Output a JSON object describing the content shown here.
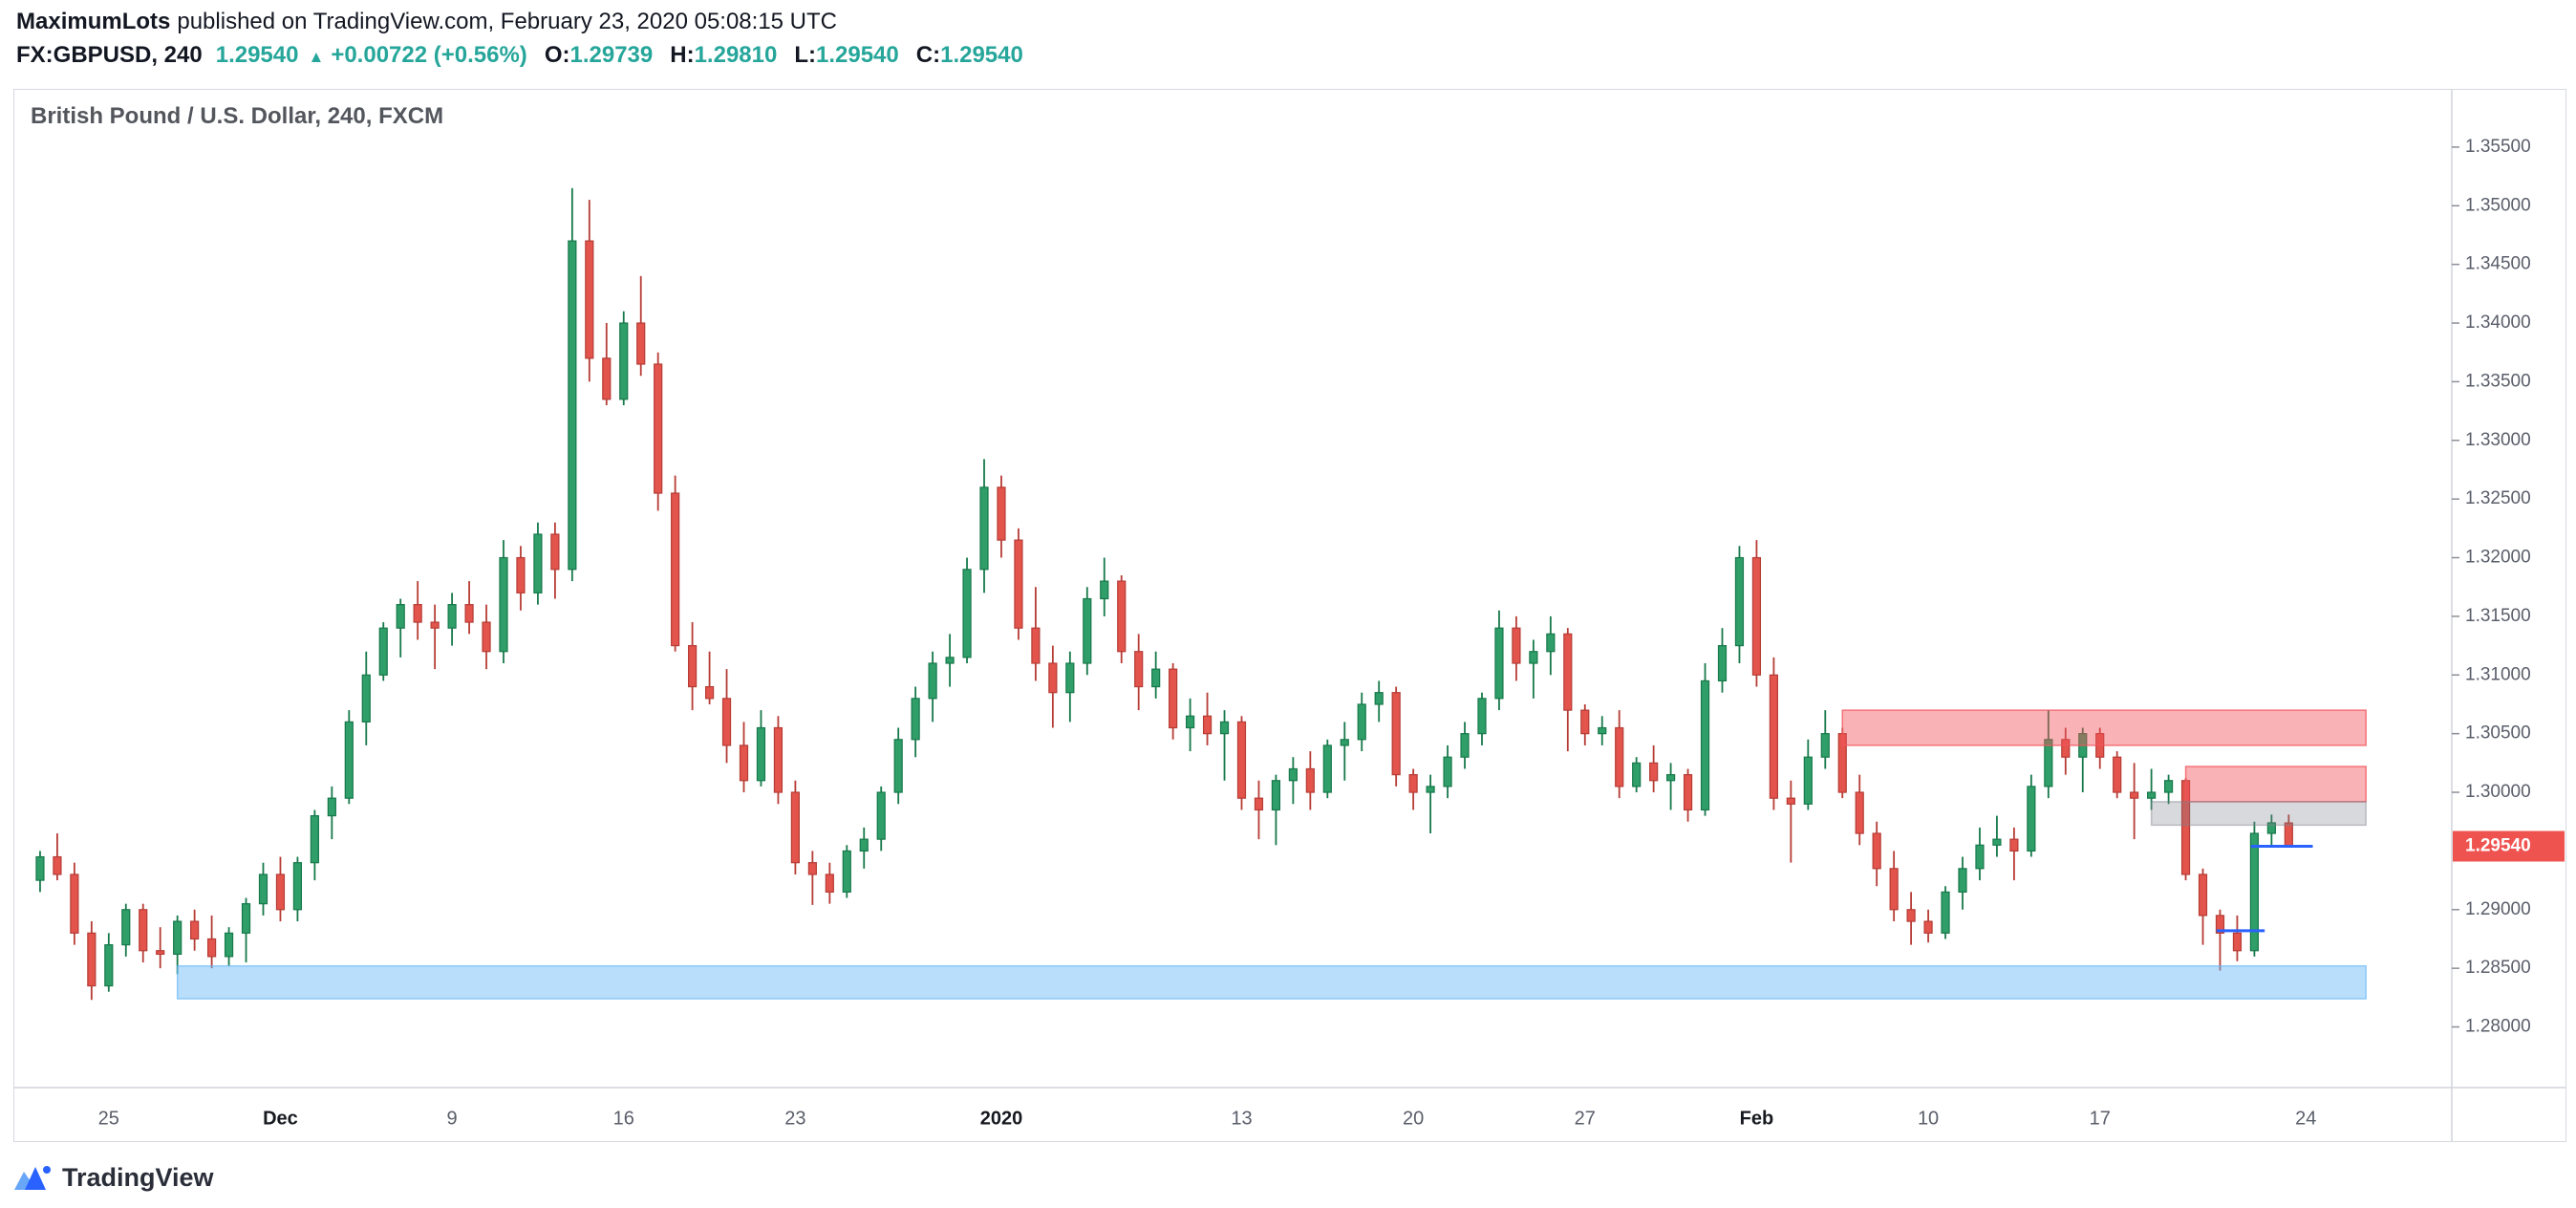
{
  "header": {
    "publisher": "MaximumLots",
    "published_text": "published on TradingView.com, February 23, 2020 05:08:15 UTC",
    "symbol": "FX:GBPUSD, 240",
    "last_price": "1.29540",
    "change_arrow": "▲",
    "change": "+0.00722 (+0.56%)",
    "ohlc": [
      {
        "label": "O:",
        "value": "1.29739"
      },
      {
        "label": "H:",
        "value": "1.29810"
      },
      {
        "label": "L:",
        "value": "1.29540"
      },
      {
        "label": "C:",
        "value": "1.29540"
      }
    ]
  },
  "chart": {
    "legend": "British Pound / U.S. Dollar, 240, FXCM"
  },
  "footer": {
    "brand": "TradingView"
  },
  "colors": {
    "up": "#2f9e68",
    "up_border": "#17794b",
    "down": "#e2544c",
    "down_border": "#b63c35",
    "accent_teal": "#26a69a",
    "price_label_bg": "#ef5350",
    "price_label_text": "#ffffff",
    "line_blue": "#2962ff",
    "axis_line": "#d1d4dc",
    "axis_text": "#5a5e6a",
    "axis_text_major": "#16191f",
    "zone_red": "rgba(242,84,91,0.45)",
    "zone_red_border": "rgba(242,84,91,0.75)",
    "zone_gray": "rgba(125,128,138,0.30)",
    "zone_gray_border": "rgba(125,128,138,0.45)",
    "zone_blue": "rgba(100,181,246,0.45)",
    "zone_blue_border": "rgba(100,181,246,0.65)"
  },
  "chart_data": {
    "type": "candlestick",
    "title": "British Pound / U.S. Dollar, 240, FXCM",
    "symbol": "GBPUSD",
    "exchange": "FXCM",
    "timeframe": "240",
    "last_price": 1.2954,
    "last_price_label": "1.29540",
    "y_axis": {
      "min": 1.27483,
      "max": 1.35988,
      "ticks": [
        {
          "value": 1.355,
          "label": "1.35500"
        },
        {
          "value": 1.35,
          "label": "1.35000"
        },
        {
          "value": 1.345,
          "label": "1.34500"
        },
        {
          "value": 1.34,
          "label": "1.34000"
        },
        {
          "value": 1.335,
          "label": "1.33500"
        },
        {
          "value": 1.33,
          "label": "1.33000"
        },
        {
          "value": 1.325,
          "label": "1.32500"
        },
        {
          "value": 1.32,
          "label": "1.32000"
        },
        {
          "value": 1.315,
          "label": "1.31500"
        },
        {
          "value": 1.31,
          "label": "1.31000"
        },
        {
          "value": 1.305,
          "label": "1.30500"
        },
        {
          "value": 1.3,
          "label": "1.30000"
        },
        {
          "value": 1.29,
          "label": "1.29000"
        },
        {
          "value": 1.285,
          "label": "1.28500"
        },
        {
          "value": 1.28,
          "label": "1.28000"
        }
      ]
    },
    "x_axis": {
      "slots": 142,
      "offset": 1.5,
      "labels": [
        {
          "slot": 4,
          "text": "25",
          "major": false
        },
        {
          "slot": 14,
          "text": "Dec",
          "major": true
        },
        {
          "slot": 24,
          "text": "9",
          "major": false
        },
        {
          "slot": 34,
          "text": "16",
          "major": false
        },
        {
          "slot": 44,
          "text": "23",
          "major": false
        },
        {
          "slot": 56,
          "text": "2020",
          "major": true
        },
        {
          "slot": 70,
          "text": "13",
          "major": false
        },
        {
          "slot": 80,
          "text": "20",
          "major": false
        },
        {
          "slot": 90,
          "text": "27",
          "major": false
        },
        {
          "slot": 100,
          "text": "Feb",
          "major": true
        },
        {
          "slot": 110,
          "text": "10",
          "major": false
        },
        {
          "slot": 120,
          "text": "17",
          "major": false
        },
        {
          "slot": 132,
          "text": "24",
          "major": false
        }
      ]
    },
    "candles": [
      [
        1.2925,
        1.295,
        1.2915,
        1.2945
      ],
      [
        1.2945,
        1.2965,
        1.2925,
        1.293
      ],
      [
        1.293,
        1.294,
        1.287,
        1.288
      ],
      [
        1.288,
        1.289,
        1.2823,
        1.2835
      ],
      [
        1.2835,
        1.288,
        1.283,
        1.287
      ],
      [
        1.287,
        1.2905,
        1.286,
        1.29
      ],
      [
        1.29,
        1.2905,
        1.2855,
        1.2865
      ],
      [
        1.2865,
        1.2885,
        1.285,
        1.2862
      ],
      [
        1.2862,
        1.2895,
        1.2845,
        1.289
      ],
      [
        1.289,
        1.29,
        1.2865,
        1.2875
      ],
      [
        1.2875,
        1.2895,
        1.285,
        1.286
      ],
      [
        1.286,
        1.2885,
        1.2852,
        1.288
      ],
      [
        1.288,
        1.291,
        1.2855,
        1.2905
      ],
      [
        1.2905,
        1.294,
        1.2895,
        1.293
      ],
      [
        1.293,
        1.2945,
        1.289,
        1.29
      ],
      [
        1.29,
        1.2945,
        1.289,
        1.294
      ],
      [
        1.294,
        1.2985,
        1.2925,
        1.298
      ],
      [
        1.298,
        1.3005,
        1.296,
        1.2995
      ],
      [
        1.2995,
        1.307,
        1.299,
        1.306
      ],
      [
        1.306,
        1.312,
        1.304,
        1.31
      ],
      [
        1.31,
        1.3145,
        1.3095,
        1.314
      ],
      [
        1.314,
        1.3165,
        1.3115,
        1.316
      ],
      [
        1.316,
        1.318,
        1.313,
        1.3145
      ],
      [
        1.3145,
        1.316,
        1.3105,
        1.314
      ],
      [
        1.314,
        1.317,
        1.3125,
        1.316
      ],
      [
        1.316,
        1.318,
        1.3135,
        1.3145
      ],
      [
        1.3145,
        1.316,
        1.3105,
        1.312
      ],
      [
        1.312,
        1.3215,
        1.311,
        1.32
      ],
      [
        1.32,
        1.321,
        1.3155,
        1.317
      ],
      [
        1.317,
        1.323,
        1.316,
        1.322
      ],
      [
        1.322,
        1.323,
        1.3165,
        1.319
      ],
      [
        1.319,
        1.3515,
        1.318,
        1.347
      ],
      [
        1.347,
        1.3505,
        1.335,
        1.337
      ],
      [
        1.337,
        1.34,
        1.333,
        1.3335
      ],
      [
        1.3335,
        1.341,
        1.333,
        1.34
      ],
      [
        1.34,
        1.344,
        1.3355,
        1.3365
      ],
      [
        1.3365,
        1.3375,
        1.324,
        1.3255
      ],
      [
        1.3255,
        1.327,
        1.312,
        1.3125
      ],
      [
        1.3125,
        1.3145,
        1.307,
        1.309
      ],
      [
        1.309,
        1.312,
        1.3075,
        1.308
      ],
      [
        1.308,
        1.3105,
        1.3025,
        1.304
      ],
      [
        1.304,
        1.306,
        1.3,
        1.301
      ],
      [
        1.301,
        1.307,
        1.3005,
        1.3055
      ],
      [
        1.3055,
        1.3065,
        1.299,
        1.3
      ],
      [
        1.3,
        1.301,
        1.293,
        1.294
      ],
      [
        1.294,
        1.295,
        1.2904,
        1.293
      ],
      [
        1.293,
        1.294,
        1.2905,
        1.2915
      ],
      [
        1.2915,
        1.2955,
        1.291,
        1.295
      ],
      [
        1.295,
        1.297,
        1.2935,
        1.296
      ],
      [
        1.296,
        1.3005,
        1.295,
        1.3
      ],
      [
        1.3,
        1.3055,
        1.299,
        1.3045
      ],
      [
        1.3045,
        1.309,
        1.303,
        1.308
      ],
      [
        1.308,
        1.312,
        1.306,
        1.311
      ],
      [
        1.311,
        1.3135,
        1.309,
        1.3115
      ],
      [
        1.3115,
        1.32,
        1.311,
        1.319
      ],
      [
        1.319,
        1.3284,
        1.317,
        1.326
      ],
      [
        1.326,
        1.327,
        1.32,
        1.3215
      ],
      [
        1.3215,
        1.3225,
        1.313,
        1.314
      ],
      [
        1.314,
        1.3175,
        1.3095,
        1.311
      ],
      [
        1.311,
        1.3125,
        1.3055,
        1.3085
      ],
      [
        1.3085,
        1.312,
        1.306,
        1.311
      ],
      [
        1.311,
        1.3175,
        1.31,
        1.3165
      ],
      [
        1.3165,
        1.32,
        1.315,
        1.318
      ],
      [
        1.318,
        1.3185,
        1.311,
        1.312
      ],
      [
        1.312,
        1.3135,
        1.307,
        1.309
      ],
      [
        1.309,
        1.312,
        1.308,
        1.3105
      ],
      [
        1.3105,
        1.311,
        1.3045,
        1.3055
      ],
      [
        1.3055,
        1.308,
        1.3035,
        1.3065
      ],
      [
        1.3065,
        1.3085,
        1.304,
        1.305
      ],
      [
        1.305,
        1.307,
        1.301,
        1.306
      ],
      [
        1.306,
        1.3065,
        1.2985,
        1.2995
      ],
      [
        1.2995,
        1.301,
        1.296,
        1.2985
      ],
      [
        1.2985,
        1.3015,
        1.2955,
        1.301
      ],
      [
        1.301,
        1.303,
        1.299,
        1.302
      ],
      [
        1.302,
        1.3035,
        1.2985,
        1.3
      ],
      [
        1.3,
        1.3045,
        1.2995,
        1.304
      ],
      [
        1.304,
        1.306,
        1.301,
        1.3045
      ],
      [
        1.3045,
        1.3085,
        1.3035,
        1.3075
      ],
      [
        1.3075,
        1.3095,
        1.306,
        1.3085
      ],
      [
        1.3085,
        1.309,
        1.3005,
        1.3015
      ],
      [
        1.3015,
        1.302,
        1.2985,
        1.3
      ],
      [
        1.3,
        1.3015,
        1.2965,
        1.3005
      ],
      [
        1.3005,
        1.304,
        1.2995,
        1.303
      ],
      [
        1.303,
        1.306,
        1.302,
        1.305
      ],
      [
        1.305,
        1.3085,
        1.304,
        1.308
      ],
      [
        1.308,
        1.3155,
        1.307,
        1.314
      ],
      [
        1.314,
        1.315,
        1.3095,
        1.311
      ],
      [
        1.311,
        1.313,
        1.308,
        1.312
      ],
      [
        1.312,
        1.315,
        1.31,
        1.3135
      ],
      [
        1.3135,
        1.314,
        1.3035,
        1.307
      ],
      [
        1.307,
        1.3075,
        1.304,
        1.305
      ],
      [
        1.305,
        1.3065,
        1.304,
        1.3055
      ],
      [
        1.3055,
        1.307,
        1.2995,
        1.3005
      ],
      [
        1.3005,
        1.303,
        1.3,
        1.3025
      ],
      [
        1.3025,
        1.304,
        1.3,
        1.301
      ],
      [
        1.301,
        1.3025,
        1.2985,
        1.3015
      ],
      [
        1.3015,
        1.302,
        1.2975,
        1.2985
      ],
      [
        1.2985,
        1.311,
        1.298,
        1.3095
      ],
      [
        1.3095,
        1.314,
        1.3085,
        1.3125
      ],
      [
        1.3125,
        1.321,
        1.311,
        1.32
      ],
      [
        1.32,
        1.3215,
        1.309,
        1.31
      ],
      [
        1.31,
        1.3115,
        1.2985,
        1.2995
      ],
      [
        1.2995,
        1.301,
        1.294,
        1.299
      ],
      [
        1.299,
        1.3045,
        1.2985,
        1.303
      ],
      [
        1.303,
        1.307,
        1.302,
        1.305
      ],
      [
        1.305,
        1.3055,
        1.2995,
        1.3
      ],
      [
        1.3,
        1.3015,
        1.2955,
        1.2965
      ],
      [
        1.2965,
        1.2975,
        1.292,
        1.2935
      ],
      [
        1.2935,
        1.295,
        1.289,
        1.29
      ],
      [
        1.29,
        1.2915,
        1.287,
        1.289
      ],
      [
        1.289,
        1.29,
        1.2872,
        1.288
      ],
      [
        1.288,
        1.292,
        1.2875,
        1.2915
      ],
      [
        1.2915,
        1.2945,
        1.29,
        1.2935
      ],
      [
        1.2935,
        1.297,
        1.2925,
        1.2955
      ],
      [
        1.2955,
        1.298,
        1.2945,
        1.296
      ],
      [
        1.296,
        1.297,
        1.2925,
        1.295
      ],
      [
        1.295,
        1.3015,
        1.2945,
        1.3005
      ],
      [
        1.3005,
        1.307,
        1.2995,
        1.3045
      ],
      [
        1.3045,
        1.3055,
        1.3015,
        1.303
      ],
      [
        1.303,
        1.3055,
        1.3,
        1.305
      ],
      [
        1.305,
        1.3055,
        1.302,
        1.303
      ],
      [
        1.303,
        1.3035,
        1.2995,
        1.3
      ],
      [
        1.3,
        1.3025,
        1.296,
        1.2995
      ],
      [
        1.2995,
        1.302,
        1.2985,
        1.3
      ],
      [
        1.3,
        1.3015,
        1.299,
        1.301
      ],
      [
        1.301,
        1.3012,
        1.2925,
        1.293
      ],
      [
        1.293,
        1.2935,
        1.287,
        1.2895
      ],
      [
        1.2895,
        1.29,
        1.2848,
        1.288
      ],
      [
        1.288,
        1.2895,
        1.2856,
        1.2865
      ],
      [
        1.2865,
        1.2975,
        1.286,
        1.2965
      ],
      [
        1.2965,
        1.2981,
        1.2955,
        1.2974
      ],
      [
        1.29739,
        1.2981,
        1.2954,
        1.2954
      ]
    ],
    "zones": [
      {
        "name": "supply-zone-upper",
        "color": "red",
        "from_slot": 105,
        "to_slot": 135.5,
        "top": 1.307,
        "bottom": 1.304
      },
      {
        "name": "supply-zone-lower",
        "color": "red",
        "from_slot": 125,
        "to_slot": 135.5,
        "top": 1.3022,
        "bottom": 1.2992
      },
      {
        "name": "neutral-zone",
        "color": "gray",
        "from_slot": 123,
        "to_slot": 135.5,
        "top": 1.2992,
        "bottom": 1.2972
      },
      {
        "name": "demand-zone",
        "color": "blue",
        "from_slot": 8,
        "to_slot": 135.5,
        "top": 1.2852,
        "bottom": 1.2824
      }
    ],
    "price_lines": [
      {
        "name": "entry-price-line",
        "price": 1.2954,
        "from_slot": 128.8,
        "to_slot": 132.4
      },
      {
        "name": "stop-price-line",
        "price": 1.2882,
        "from_slot": 126.8,
        "to_slot": 129.6
      }
    ]
  }
}
